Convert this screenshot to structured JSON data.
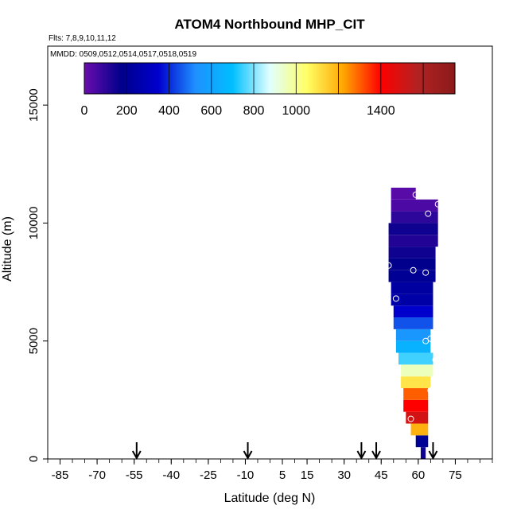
{
  "chart_data": {
    "type": "heatmap",
    "title": "ATOM4 Northbound MHP_CIT",
    "flights_label": "Flts: 7,8,9,10,11,12",
    "dates_label": "MMDD: 0509,0512,0514,0517,0518,0519",
    "xlabel": "Latitude (deg N)",
    "ylabel": "Altitude (m)",
    "xlim": [
      -90,
      90
    ],
    "ylim": [
      0,
      17500
    ],
    "x_ticks": [
      -85,
      -70,
      -55,
      -40,
      -25,
      -10,
      5,
      15,
      30,
      45,
      60,
      75
    ],
    "x_minor_step": 5,
    "y_ticks": [
      0,
      5000,
      10000,
      15000
    ],
    "colorbar": {
      "range": [
        0,
        1750
      ],
      "labels": [
        0,
        200,
        400,
        600,
        800,
        1000,
        1400
      ],
      "ticks": [
        0,
        200,
        400,
        600,
        800,
        1000,
        1200,
        1400,
        1600,
        1750
      ],
      "colors": [
        "#6a0dad",
        "#00008b",
        "#0000cd",
        "#1e90ff",
        "#00bfff",
        "#e0ffff",
        "#ffff66",
        "#ffa500",
        "#ff0000",
        "#b22222",
        "#8b1a1a"
      ]
    },
    "arrows_lat": [
      -54,
      -9,
      37,
      43,
      66
    ],
    "curtain_segments": [
      {
        "alt_min": 0,
        "alt_max": 500,
        "lat_min": 61,
        "lat_max": 63,
        "value": 150
      },
      {
        "alt_min": 500,
        "alt_max": 1000,
        "lat_min": 59,
        "lat_max": 64,
        "value": 200
      },
      {
        "alt_min": 1000,
        "alt_max": 1500,
        "lat_min": 57,
        "lat_max": 64,
        "value": 1200
      },
      {
        "alt_min": 1500,
        "alt_max": 2000,
        "lat_min": 55,
        "lat_max": 64,
        "value": 1500
      },
      {
        "alt_min": 2000,
        "alt_max": 2500,
        "lat_min": 54,
        "lat_max": 64,
        "value": 1400
      },
      {
        "alt_min": 2500,
        "alt_max": 3000,
        "lat_min": 54,
        "lat_max": 64,
        "value": 1300
      },
      {
        "alt_min": 3000,
        "alt_max": 3500,
        "lat_min": 53,
        "lat_max": 65,
        "value": 1100
      },
      {
        "alt_min": 3500,
        "alt_max": 4000,
        "lat_min": 53,
        "lat_max": 66,
        "value": 950
      },
      {
        "alt_min": 4000,
        "alt_max": 4500,
        "lat_min": 52,
        "lat_max": 66,
        "value": 750
      },
      {
        "alt_min": 4500,
        "alt_max": 5000,
        "lat_min": 51,
        "lat_max": 65,
        "value": 650
      },
      {
        "alt_min": 5000,
        "alt_max": 5500,
        "lat_min": 51,
        "lat_max": 65,
        "value": 550
      },
      {
        "alt_min": 5500,
        "alt_max": 6000,
        "lat_min": 50,
        "lat_max": 66,
        "value": 450
      },
      {
        "alt_min": 6000,
        "alt_max": 6500,
        "lat_min": 50,
        "lat_max": 66,
        "value": 350
      },
      {
        "alt_min": 6500,
        "alt_max": 7000,
        "lat_min": 49,
        "lat_max": 66,
        "value": 250
      },
      {
        "alt_min": 7000,
        "alt_max": 7500,
        "lat_min": 49,
        "lat_max": 66,
        "value": 230
      },
      {
        "alt_min": 7500,
        "alt_max": 8000,
        "lat_min": 48,
        "lat_max": 67,
        "value": 200
      },
      {
        "alt_min": 8000,
        "alt_max": 8500,
        "lat_min": 48,
        "lat_max": 67,
        "value": 180
      },
      {
        "alt_min": 8500,
        "alt_max": 9000,
        "lat_min": 48,
        "lat_max": 67,
        "value": 150
      },
      {
        "alt_min": 9000,
        "alt_max": 9500,
        "lat_min": 48,
        "lat_max": 68,
        "value": 120
      },
      {
        "alt_min": 9500,
        "alt_max": 10000,
        "lat_min": 48,
        "lat_max": 68,
        "value": 150
      },
      {
        "alt_min": 10000,
        "alt_max": 10500,
        "lat_min": 49,
        "lat_max": 68,
        "value": 100
      },
      {
        "alt_min": 10500,
        "alt_max": 11000,
        "lat_min": 49,
        "lat_max": 68,
        "value": 50
      },
      {
        "alt_min": 11000,
        "alt_max": 11500,
        "lat_min": 49,
        "lat_max": 59,
        "value": 30
      }
    ],
    "sample_points": [
      {
        "lat": 59,
        "alt": 11200
      },
      {
        "lat": 68,
        "alt": 10800
      },
      {
        "lat": 64,
        "alt": 10400
      },
      {
        "lat": 48,
        "alt": 8200
      },
      {
        "lat": 58,
        "alt": 8000
      },
      {
        "lat": 63,
        "alt": 7900
      },
      {
        "lat": 51,
        "alt": 6800
      },
      {
        "lat": 63,
        "alt": 5000
      },
      {
        "lat": 65,
        "alt": 5100
      },
      {
        "lat": 67,
        "alt": 4200
      },
      {
        "lat": 65,
        "alt": 2900
      },
      {
        "lat": 57,
        "alt": 1700
      }
    ]
  }
}
